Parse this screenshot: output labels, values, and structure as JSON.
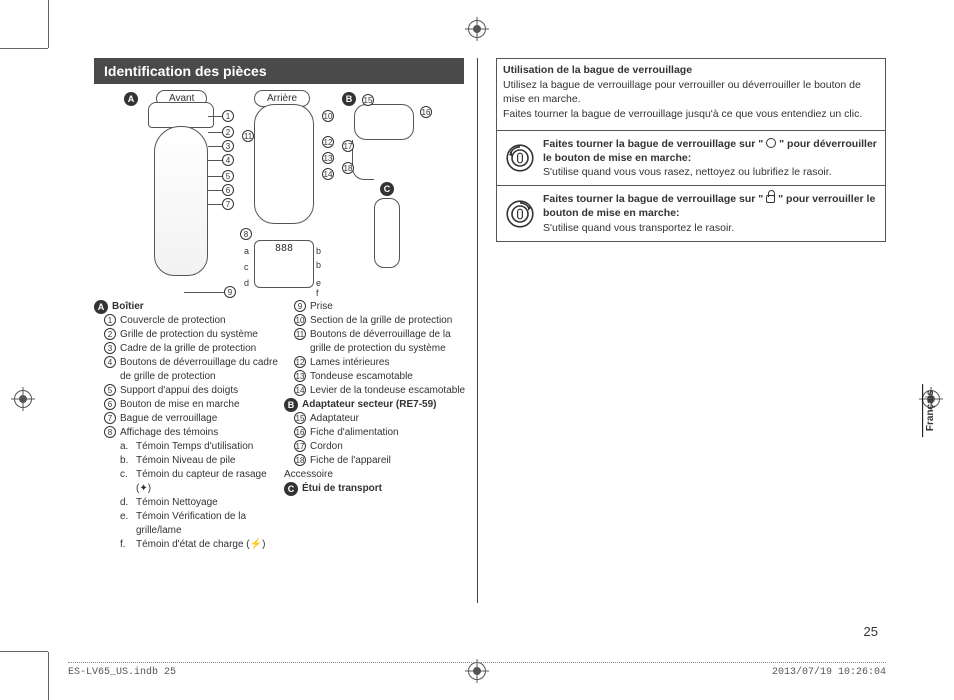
{
  "header": {
    "title": "Identification des pièces"
  },
  "diagram": {
    "front_label": "Avant",
    "rear_label": "Arrière",
    "lcd_demo": "888",
    "panel_letters": [
      "a",
      "b",
      "c",
      "d",
      "e",
      "f"
    ],
    "body_numbers": [
      "1",
      "2",
      "3",
      "4",
      "5",
      "6",
      "7",
      "8",
      "9"
    ],
    "rear_numbers": [
      "10",
      "11",
      "12",
      "13",
      "14"
    ],
    "adapter_numbers": [
      "15",
      "16",
      "17",
      "18"
    ],
    "group_letters": {
      "A": "A",
      "B": "B",
      "C": "C"
    }
  },
  "groups": {
    "A": {
      "letter": "A",
      "title": "Boîtier"
    },
    "B": {
      "letter": "B",
      "title": "Adaptateur secteur (RE7-59)"
    },
    "C": {
      "letter": "C",
      "title": "Étui de transport"
    },
    "accessory_label": "Accessoire"
  },
  "parts_left": [
    {
      "n": "1",
      "t": "Couvercle de protection"
    },
    {
      "n": "2",
      "t": "Grille de protection du système"
    },
    {
      "n": "3",
      "t": "Cadre de la grille de protection"
    },
    {
      "n": "4",
      "t": "Boutons de déverrouillage du cadre de grille de protection"
    },
    {
      "n": "5",
      "t": "Support d'appui des doigts"
    },
    {
      "n": "6",
      "t": "Bouton de mise en marche"
    },
    {
      "n": "7",
      "t": "Bague de verrouillage"
    },
    {
      "n": "8",
      "t": "Affichage des témoins"
    }
  ],
  "parts_left_sub": [
    {
      "l": "a.",
      "t": "Témoin Temps d'utilisation"
    },
    {
      "l": "b.",
      "t": "Témoin Niveau de pile"
    },
    {
      "l": "c.",
      "t": "Témoin du capteur de rasage (✦)"
    },
    {
      "l": "d.",
      "t": "Témoin Nettoyage"
    },
    {
      "l": "e.",
      "t": "Témoin Vérification de la grille/lame"
    },
    {
      "l": "f.",
      "t": "Témoin d'état de charge (⚡)"
    }
  ],
  "parts_right": [
    {
      "n": "9",
      "t": "Prise"
    },
    {
      "n": "10",
      "t": "Section de la grille de protection"
    },
    {
      "n": "11",
      "t": "Boutons de déverrouillage de la grille de protection du système"
    },
    {
      "n": "12",
      "t": "Lames intérieures"
    },
    {
      "n": "13",
      "t": "Tondeuse escamotable"
    },
    {
      "n": "14",
      "t": "Levier de la tondeuse escamotable"
    }
  ],
  "parts_right_B": [
    {
      "n": "15",
      "t": "Adaptateur"
    },
    {
      "n": "16",
      "t": "Fiche d'alimentation"
    },
    {
      "n": "17",
      "t": "Cordon"
    },
    {
      "n": "18",
      "t": "Fiche de l'appareil"
    }
  ],
  "lock_intro": {
    "title": "Utilisation de la bague de verrouillage",
    "line1": "Utilisez la bague de verrouillage pour verrouiller ou déverrouiller le bouton de mise en marche.",
    "line2": "Faites tourner la bague de verrouillage jusqu'à ce que vous entendiez un clic."
  },
  "lock_unlock": {
    "bold_pre": "Faites tourner la bague de verrouillage sur \" ",
    "bold_post": " \" pour déverrouiller le bouton de mise en marche:",
    "body": "S'utilise quand vous vous rasez, nettoyez ou lubrifiez le rasoir."
  },
  "lock_lock": {
    "bold_pre": "Faites tourner la bague de verrouillage sur \" ",
    "bold_post": " \" pour verrouiller le bouton de mise en marche:",
    "body": "S'utilise quand vous transportez le rasoir."
  },
  "side_tab": "Français",
  "page_number": "25",
  "footer": {
    "left": "ES-LV65_US.indb   25",
    "right": "2013/07/19   10:26:04"
  }
}
